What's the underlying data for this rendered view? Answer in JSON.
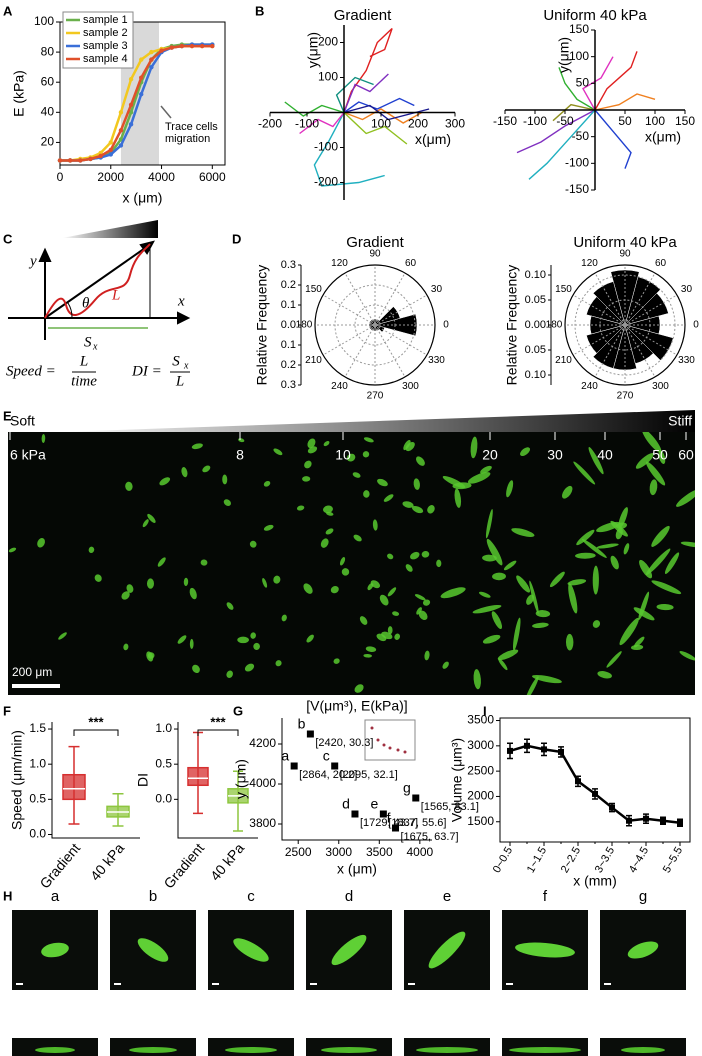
{
  "panel_labels": [
    "A",
    "B",
    "C",
    "D",
    "E",
    "F",
    "G",
    "I",
    "H"
  ],
  "chart_data": [
    {
      "type": "line",
      "xlabel": "x (μm)",
      "ylabel": "E (kPa)",
      "x": [
        0,
        400,
        800,
        1200,
        1600,
        2000,
        2400,
        2800,
        3200,
        3600,
        4000,
        4400,
        4800,
        5200,
        5600,
        6000
      ],
      "xlim": [
        0,
        6500
      ],
      "xticks": [
        0,
        2000,
        4000,
        6000
      ],
      "ylim": [
        5,
        100
      ],
      "yticks": [
        20,
        40,
        60,
        80,
        100
      ],
      "highlight_x": [
        2400,
        3900
      ],
      "annotation": [
        "Trace cells",
        "migration"
      ],
      "legend": "upper left",
      "series": [
        {
          "name": "sample 1",
          "color": "#6ab04c",
          "values": [
            8,
            8,
            8,
            9,
            10,
            13,
            22,
            40,
            60,
            75,
            82,
            84,
            85,
            85,
            85,
            85
          ]
        },
        {
          "name": "sample 2",
          "color": "#f2c81f",
          "values": [
            8,
            8,
            9,
            10,
            13,
            20,
            40,
            62,
            75,
            80,
            82,
            83,
            84,
            84,
            84,
            84
          ]
        },
        {
          "name": "sample 3",
          "color": "#3a6fd8",
          "values": [
            8,
            8,
            8,
            9,
            10,
            12,
            18,
            32,
            52,
            70,
            80,
            83,
            84,
            85,
            85,
            85
          ]
        },
        {
          "name": "sample 4",
          "color": "#e0502a",
          "values": [
            8,
            8,
            8,
            9,
            11,
            15,
            28,
            45,
            63,
            75,
            81,
            83,
            84,
            84,
            84,
            84
          ]
        }
      ]
    },
    {
      "type": "tracks",
      "title": "Gradient",
      "xlabel": "x(μm)",
      "ylabel": "y(μm)",
      "xlim": [
        -200,
        300
      ],
      "ylim": [
        -250,
        250
      ],
      "xticks": [
        -200,
        -100,
        100,
        200,
        300
      ],
      "yticks": [
        200,
        100,
        -100,
        -200
      ],
      "tracks": [
        {
          "color": "#e02020",
          "x": [
            0,
            20,
            60,
            90,
            130,
            110,
            70
          ],
          "y": [
            0,
            60,
            120,
            200,
            240,
            180,
            160
          ]
        },
        {
          "color": "#20b0c0",
          "x": [
            0,
            -40,
            -80,
            -60,
            40,
            110
          ],
          "y": [
            0,
            -80,
            -150,
            -210,
            -200,
            -180
          ]
        },
        {
          "color": "#2040d0",
          "x": [
            0,
            40,
            90,
            150,
            190
          ],
          "y": [
            0,
            30,
            10,
            40,
            20
          ]
        },
        {
          "color": "#30b030",
          "x": [
            0,
            -60,
            -110,
            -160
          ],
          "y": [
            0,
            20,
            -10,
            30
          ]
        },
        {
          "color": "#f08020",
          "x": [
            0,
            50,
            100,
            160,
            210
          ],
          "y": [
            0,
            -20,
            10,
            -30,
            0
          ]
        },
        {
          "color": "#8030c0",
          "x": [
            0,
            30,
            70,
            120
          ],
          "y": [
            0,
            80,
            60,
            110
          ]
        },
        {
          "color": "#e030c0",
          "x": [
            0,
            -30,
            -70,
            -120
          ],
          "y": [
            0,
            -40,
            -20,
            -60
          ]
        },
        {
          "color": "#90c020",
          "x": [
            0,
            60,
            110,
            170
          ],
          "y": [
            0,
            -60,
            -40,
            -90
          ]
        },
        {
          "color": "#109080",
          "x": [
            0,
            -20,
            30,
            80
          ],
          "y": [
            0,
            50,
            100,
            80
          ]
        },
        {
          "color": "#1a1a90",
          "x": [
            0,
            70,
            120,
            230
          ],
          "y": [
            0,
            20,
            -20,
            10
          ]
        }
      ]
    },
    {
      "type": "tracks",
      "title": "Uniform 40 kPa",
      "xlabel": "x(μm)",
      "ylabel": "y(μm)",
      "xlim": [
        -150,
        150
      ],
      "ylim": [
        -150,
        150
      ],
      "xticks": [
        -150,
        -100,
        -50,
        50,
        100,
        150
      ],
      "yticks": [
        150,
        100,
        50,
        -50,
        -100,
        -150
      ],
      "tracks": [
        {
          "color": "#e02020",
          "x": [
            0,
            20,
            60,
            70
          ],
          "y": [
            0,
            40,
            80,
            110
          ]
        },
        {
          "color": "#2040d0",
          "x": [
            0,
            30,
            60,
            50
          ],
          "y": [
            0,
            -40,
            -80,
            -110
          ]
        },
        {
          "color": "#8030c0",
          "x": [
            0,
            -50,
            -90,
            -130
          ],
          "y": [
            0,
            -30,
            -60,
            -80
          ]
        },
        {
          "color": "#20b0c0",
          "x": [
            0,
            -40,
            -80,
            -110
          ],
          "y": [
            0,
            -50,
            -100,
            -130
          ]
        },
        {
          "color": "#30b030",
          "x": [
            0,
            -30,
            -50,
            -60
          ],
          "y": [
            0,
            20,
            50,
            80
          ]
        },
        {
          "color": "#f08020",
          "x": [
            0,
            40,
            70,
            100
          ],
          "y": [
            0,
            10,
            30,
            20
          ]
        },
        {
          "color": "#e030c0",
          "x": [
            0,
            -20,
            10,
            30
          ],
          "y": [
            0,
            40,
            60,
            100
          ]
        },
        {
          "color": "#909020",
          "x": [
            0,
            -40,
            -70
          ],
          "y": [
            0,
            10,
            -20
          ]
        }
      ]
    },
    {
      "type": "polar_bar",
      "title": "Gradient",
      "rlabel": "Relative Frequency",
      "theta": [
        0,
        30,
        60,
        90,
        120,
        150,
        180,
        210,
        240,
        270,
        300,
        330
      ],
      "values": [
        0.21,
        0.13,
        0.03,
        0.03,
        0.03,
        0.03,
        0.03,
        0.03,
        0.03,
        0.03,
        0.03,
        0.05
      ],
      "rlim": [
        0,
        0.3
      ],
      "rticks": [
        0.3,
        0.2,
        0.1,
        {
          "value": 0,
          "label": "0.0"
        },
        {
          "value": -0.1,
          "label": "0.1"
        },
        {
          "value": -0.2,
          "label": "0.2"
        },
        {
          "value": -0.3,
          "label": "0.3"
        }
      ],
      "thetaticks": [
        90,
        60,
        30,
        0,
        330,
        300,
        270,
        240,
        210,
        180,
        150,
        120
      ],
      "color": "#000000"
    },
    {
      "type": "polar_bar",
      "title": "Uniform 40 kPa",
      "rlabel": "Relative Frequency",
      "theta": [
        0,
        30,
        60,
        90,
        120,
        150,
        180,
        210,
        240,
        270,
        300,
        330
      ],
      "values": [
        0.07,
        0.09,
        0.1,
        0.11,
        0.09,
        0.08,
        0.07,
        0.08,
        0.09,
        0.09,
        0.08,
        0.1
      ],
      "rlim": [
        0,
        0.12
      ],
      "rticks": [
        {
          "value": 0.1,
          "label": "0.10"
        },
        0.05,
        {
          "value": 0,
          "label": "0.00"
        },
        {
          "value": -0.05,
          "label": "0.05"
        },
        {
          "value": -0.1,
          "label": "0.10"
        }
      ],
      "thetaticks": [
        90,
        60,
        30,
        0,
        330,
        300,
        270,
        240,
        210,
        180,
        150,
        120
      ],
      "color": "#000000"
    },
    {
      "type": "box",
      "ylabel": "Speed (μm/min)",
      "categories": [
        "Gradient",
        "40 kPa"
      ],
      "colors": [
        "#d62f2f",
        "#8dc63f"
      ],
      "q1": [
        0.5,
        0.25
      ],
      "median": [
        0.65,
        0.32
      ],
      "q3": [
        0.85,
        0.4
      ],
      "whisker_low": [
        0.15,
        0.12
      ],
      "whisker_high": [
        1.25,
        0.58
      ],
      "ylim": [
        -0.05,
        1.6
      ],
      "yticks": [
        {
          "value": 0,
          "label": "0.0"
        },
        0.5,
        {
          "value": 1,
          "label": "1.0"
        },
        1.5
      ],
      "significance": "***"
    },
    {
      "type": "box",
      "ylabel": "DI",
      "categories": [
        "Gradient",
        "40 kPa"
      ],
      "colors": [
        "#d62f2f",
        "#8dc63f"
      ],
      "q1": [
        0.2,
        -0.05
      ],
      "median": [
        0.3,
        0.05
      ],
      "q3": [
        0.45,
        0.15
      ],
      "whisker_low": [
        -0.2,
        -0.45
      ],
      "whisker_high": [
        0.95,
        0.4
      ],
      "ylim": [
        -0.55,
        1.1
      ],
      "yticks": [
        {
          "value": 0,
          "label": "0.0"
        },
        0.5,
        {
          "value": 1,
          "label": "1.0"
        }
      ],
      "significance": "***"
    },
    {
      "type": "scatter",
      "title": "[V(μm³), E(kPa)]",
      "xlabel": "x (μm)",
      "ylabel": "y (μm)",
      "x": [
        2450,
        2650,
        2950,
        3200,
        3550,
        3700,
        3950
      ],
      "y": [
        4090,
        4250,
        4090,
        3850,
        3850,
        3780,
        3930
      ],
      "point_labels": [
        "a",
        "b",
        "c",
        "d",
        "e",
        "f",
        "g"
      ],
      "point_annotations": [
        "[2864, 20.2]",
        "[2420, 30.3]",
        "[2095, 32.1]",
        "[1729, 43.7]",
        "[1837, 55.6]",
        "[1675, 63.7]",
        "[1565, 83.1]"
      ],
      "xlim": [
        2300,
        4150
      ],
      "xticks": [
        2500,
        3000,
        3500,
        4000
      ],
      "ylim": [
        3720,
        4330
      ],
      "yticks": [
        3800,
        4000,
        4200
      ],
      "color": "#000000"
    },
    {
      "type": "line",
      "xlabel": "x (mm)",
      "ylabel": "Volume (μm³)",
      "categories": [
        "0~0.5",
        null,
        "1~1.5",
        null,
        "2~2.5",
        null,
        "3~3.5",
        null,
        "4~4.5",
        null,
        "5~5.5"
      ],
      "values": [
        2900,
        3000,
        2930,
        2880,
        2300,
        2050,
        1780,
        1520,
        1560,
        1520,
        1480
      ],
      "errors": [
        150,
        130,
        120,
        100,
        100,
        100,
        80,
        100,
        90,
        70,
        70
      ],
      "ylim": [
        1100,
        3550
      ],
      "yticks": [
        1500,
        2000,
        2500,
        3000,
        3500
      ],
      "color": "#000000"
    }
  ],
  "diagram": {
    "y_axis": "y",
    "x_axis": "x",
    "angle": "θ",
    "path": "L",
    "displacement": "S",
    "displacement_sub": "x",
    "speed": "Speed =",
    "speed_num": "L",
    "speed_den": "time",
    "di": "DI =",
    "di_num": "S",
    "di_num_sub": "x",
    "di_den": "L"
  },
  "micrograph": {
    "left": "Soft",
    "right": "Stiff",
    "stiffness_ticks": [
      {
        "value": 6,
        "label": "6 kPa"
      },
      8,
      10,
      20,
      30,
      40,
      50,
      60
    ],
    "scale_bar": "200 μm"
  },
  "gallery": {
    "labels": [
      "a",
      "b",
      "c",
      "d",
      "e",
      "f",
      "g"
    ]
  }
}
